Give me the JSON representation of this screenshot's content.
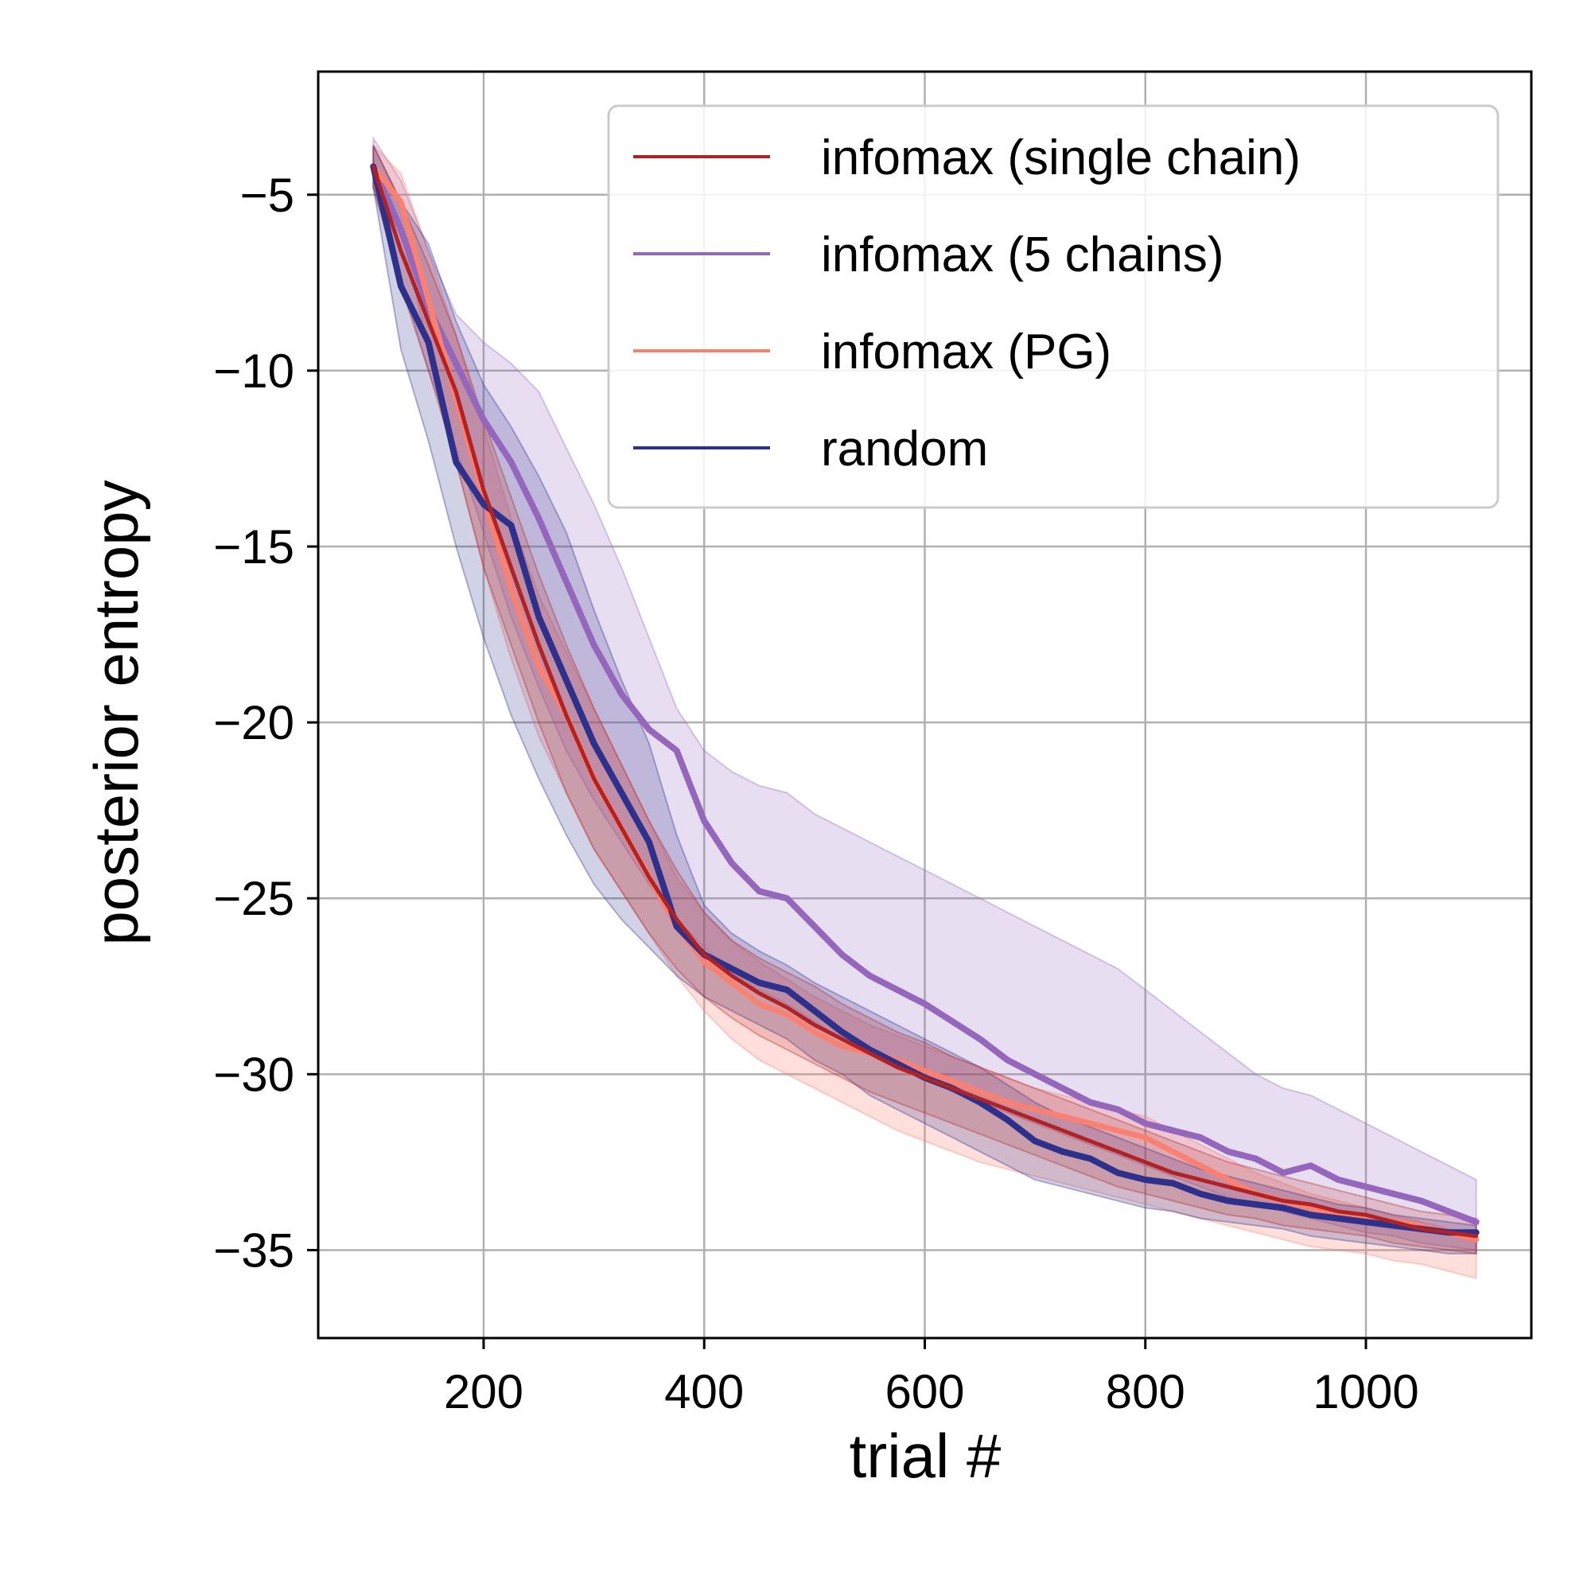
{
  "chart_data": {
    "type": "line",
    "title": "",
    "xlabel": "trial #",
    "ylabel": "posterior entropy",
    "xlim": [
      50,
      1150
    ],
    "ylim": [
      -37.5,
      -1.5
    ],
    "xticks": [
      200,
      400,
      600,
      800,
      1000
    ],
    "xtick_labels": [
      "200",
      "400",
      "600",
      "800",
      "1000"
    ],
    "yticks": [
      -5,
      -10,
      -15,
      -20,
      -25,
      -30,
      -35
    ],
    "ytick_labels": [
      "−5",
      "−10",
      "−15",
      "−20",
      "−25",
      "−30",
      "−35"
    ],
    "grid": true,
    "legend_position": "top-right",
    "x": [
      100,
      125,
      150,
      175,
      200,
      225,
      250,
      275,
      300,
      325,
      350,
      375,
      400,
      425,
      450,
      475,
      500,
      525,
      550,
      575,
      600,
      625,
      650,
      675,
      700,
      725,
      750,
      775,
      800,
      825,
      850,
      875,
      900,
      925,
      950,
      975,
      1000,
      1025,
      1050,
      1075,
      1100
    ],
    "series": [
      {
        "name": "infomax (single chain)",
        "color": "#b22222",
        "values": [
          -4.2,
          -6.6,
          -8.6,
          -10.6,
          -13.4,
          -15.6,
          -17.8,
          -19.8,
          -21.6,
          -23.0,
          -24.4,
          -25.6,
          -26.6,
          -27.2,
          -27.7,
          -28.1,
          -28.6,
          -29.0,
          -29.4,
          -29.8,
          -30.1,
          -30.4,
          -30.7,
          -31.0,
          -31.3,
          -31.6,
          -31.9,
          -32.2,
          -32.5,
          -32.8,
          -33.0,
          -33.2,
          -33.4,
          -33.6,
          -33.7,
          -33.9,
          -34.0,
          -34.2,
          -34.4,
          -34.5,
          -34.6
        ],
        "band_lower": [
          -4.8,
          -7.6,
          -10.0,
          -12.6,
          -15.6,
          -17.8,
          -20.0,
          -22.0,
          -23.6,
          -24.8,
          -26.0,
          -27.0,
          -27.8,
          -28.4,
          -28.9,
          -29.3,
          -29.7,
          -30.1,
          -30.5,
          -30.8,
          -31.1,
          -31.4,
          -31.7,
          -32.0,
          -32.3,
          -32.6,
          -32.9,
          -33.2,
          -33.4,
          -33.6,
          -33.8,
          -34.0,
          -34.1,
          -34.3,
          -34.4,
          -34.5,
          -34.6,
          -34.8,
          -34.9,
          -35.0,
          -35.1
        ],
        "band_upper": [
          -3.6,
          -5.2,
          -7.0,
          -9.0,
          -11.4,
          -13.6,
          -15.8,
          -17.8,
          -19.6,
          -21.2,
          -22.8,
          -24.2,
          -25.4,
          -26.2,
          -26.7,
          -27.1,
          -27.5,
          -28.0,
          -28.4,
          -28.8,
          -29.1,
          -29.5,
          -29.8,
          -30.1,
          -30.4,
          -30.7,
          -31.0,
          -31.3,
          -31.6,
          -31.9,
          -32.2,
          -32.5,
          -32.7,
          -32.9,
          -33.1,
          -33.3,
          -33.5,
          -33.7,
          -33.9,
          -34.0,
          -34.1
        ]
      },
      {
        "name": "infomax (5 chains)",
        "color": "#9467bd",
        "values": [
          -4.2,
          -6.0,
          -8.2,
          -9.8,
          -11.4,
          -12.6,
          -14.2,
          -16.0,
          -17.8,
          -19.2,
          -20.2,
          -20.8,
          -22.8,
          -24.0,
          -24.8,
          -25.0,
          -25.8,
          -26.6,
          -27.2,
          -27.6,
          -28.0,
          -28.5,
          -29.0,
          -29.6,
          -30.0,
          -30.4,
          -30.8,
          -31.0,
          -31.4,
          -31.6,
          -31.8,
          -32.2,
          -32.4,
          -32.8,
          -32.6,
          -33.0,
          -33.2,
          -33.4,
          -33.6,
          -33.9,
          -34.2
        ],
        "band_lower": [
          -4.8,
          -7.4,
          -10.0,
          -12.2,
          -14.6,
          -17.0,
          -19.0,
          -20.8,
          -22.2,
          -23.4,
          -24.6,
          -25.6,
          -26.4,
          -27.1,
          -27.6,
          -28.0,
          -28.5,
          -29.0,
          -29.4,
          -29.8,
          -30.1,
          -30.5,
          -30.8,
          -31.1,
          -31.4,
          -31.7,
          -32.0,
          -32.3,
          -32.6,
          -32.9,
          -33.2,
          -33.5,
          -33.7,
          -33.9,
          -34.1,
          -34.3,
          -34.5,
          -34.6,
          -34.8,
          -34.9,
          -35.0
        ],
        "band_upper": [
          -3.4,
          -4.6,
          -6.6,
          -8.4,
          -9.2,
          -9.8,
          -10.6,
          -12.2,
          -13.8,
          -15.6,
          -17.6,
          -19.6,
          -20.8,
          -21.4,
          -21.8,
          -22.0,
          -22.6,
          -23.0,
          -23.4,
          -23.8,
          -24.2,
          -24.6,
          -25.0,
          -25.4,
          -25.8,
          -26.2,
          -26.6,
          -27.0,
          -27.6,
          -28.2,
          -28.8,
          -29.4,
          -30.0,
          -30.4,
          -30.6,
          -31.0,
          -31.4,
          -31.8,
          -32.2,
          -32.6,
          -33.0
        ]
      },
      {
        "name": "infomax (PG)",
        "color": "#fa8072",
        "values": [
          -4.2,
          -5.2,
          -8.0,
          -10.8,
          -13.6,
          -16.2,
          -18.4,
          -19.8,
          -21.6,
          -23.0,
          -24.4,
          -25.8,
          -26.8,
          -27.4,
          -28.0,
          -28.3,
          -28.8,
          -29.2,
          -29.4,
          -29.6,
          -29.9,
          -30.2,
          -30.5,
          -30.8,
          -31.0,
          -31.2,
          -31.4,
          -31.6,
          -31.8,
          -32.2,
          -32.6,
          -33.0,
          -33.4,
          -33.6,
          -33.8,
          -34.0,
          -34.1,
          -34.2,
          -34.3,
          -34.5,
          -34.7
        ],
        "band_lower": [
          -4.8,
          -6.0,
          -9.4,
          -12.6,
          -15.6,
          -18.2,
          -20.4,
          -22.0,
          -23.6,
          -24.8,
          -26.0,
          -27.2,
          -28.2,
          -29.0,
          -29.6,
          -30.0,
          -30.4,
          -30.8,
          -31.2,
          -31.6,
          -31.9,
          -32.2,
          -32.5,
          -32.7,
          -32.9,
          -33.1,
          -33.3,
          -33.5,
          -33.7,
          -33.9,
          -34.1,
          -34.3,
          -34.5,
          -34.7,
          -34.9,
          -35.0,
          -35.1,
          -35.3,
          -35.4,
          -35.6,
          -35.8
        ],
        "band_upper": [
          -3.6,
          -4.4,
          -6.6,
          -9.0,
          -11.6,
          -14.2,
          -16.4,
          -18.0,
          -19.6,
          -21.2,
          -22.8,
          -24.4,
          -25.4,
          -26.2,
          -26.8,
          -27.3,
          -27.8,
          -28.2,
          -28.6,
          -28.9,
          -29.2,
          -29.5,
          -29.8,
          -30.1,
          -30.4,
          -30.6,
          -30.8,
          -31.0,
          -31.2,
          -31.6,
          -32.0,
          -32.4,
          -32.8,
          -33.1,
          -33.4,
          -33.6,
          -33.8,
          -34.0,
          -34.2,
          -34.4,
          -34.6
        ]
      },
      {
        "name": "random",
        "color": "#2e318c",
        "values": [
          -4.2,
          -7.6,
          -9.2,
          -12.6,
          -13.8,
          -14.4,
          -17.0,
          -18.8,
          -20.6,
          -22.0,
          -23.4,
          -25.8,
          -26.6,
          -27.0,
          -27.4,
          -27.6,
          -28.2,
          -28.8,
          -29.3,
          -29.7,
          -30.1,
          -30.4,
          -30.8,
          -31.3,
          -31.9,
          -32.2,
          -32.4,
          -32.8,
          -33.0,
          -33.1,
          -33.4,
          -33.6,
          -33.7,
          -33.8,
          -34.0,
          -34.1,
          -34.2,
          -34.3,
          -34.4,
          -34.5,
          -34.5
        ],
        "band_lower": [
          -4.8,
          -9.4,
          -12.0,
          -15.0,
          -17.6,
          -19.8,
          -21.6,
          -23.2,
          -24.6,
          -25.6,
          -26.4,
          -27.2,
          -27.8,
          -28.2,
          -28.6,
          -29.0,
          -29.6,
          -30.0,
          -30.6,
          -31.0,
          -31.4,
          -31.8,
          -32.2,
          -32.6,
          -33.0,
          -33.2,
          -33.4,
          -33.6,
          -33.8,
          -33.9,
          -34.1,
          -34.2,
          -34.3,
          -34.4,
          -34.6,
          -34.7,
          -34.8,
          -34.9,
          -35.0,
          -35.1,
          -35.1
        ],
        "band_upper": [
          -3.6,
          -5.2,
          -6.4,
          -8.6,
          -10.4,
          -11.6,
          -13.0,
          -14.6,
          -16.8,
          -18.8,
          -20.6,
          -23.2,
          -25.2,
          -26.0,
          -26.5,
          -26.9,
          -27.4,
          -27.8,
          -28.2,
          -28.6,
          -29.0,
          -29.4,
          -29.8,
          -30.3,
          -30.8,
          -31.2,
          -31.5,
          -31.8,
          -32.1,
          -32.4,
          -32.7,
          -32.9,
          -33.1,
          -33.3,
          -33.5,
          -33.7,
          -33.8,
          -34.0,
          -34.1,
          -34.2,
          -34.3
        ]
      }
    ]
  }
}
